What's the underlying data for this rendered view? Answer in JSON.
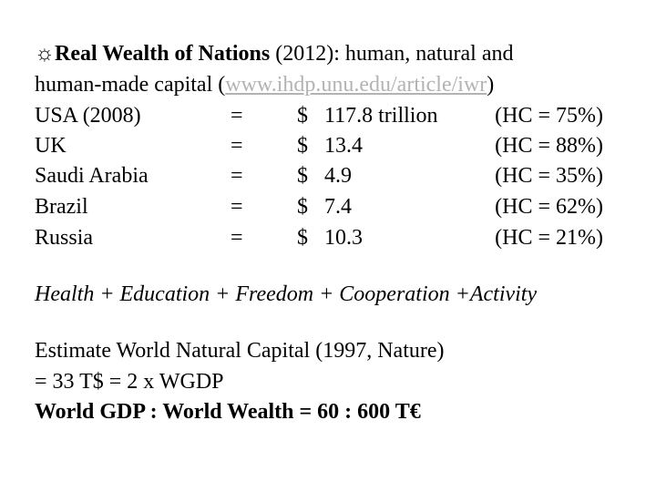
{
  "title": {
    "sun_symbol": "☼",
    "bold_part": "Real Wealth of Nations",
    "rest": " (2012): human, natural and",
    "line2_prefix": "human-made capital (",
    "link": "www.ihdp.unu.edu/article/iwr",
    "line2_suffix": ")"
  },
  "rows": [
    {
      "country": "USA (2008)",
      "eq": "=",
      "currency": "$",
      "value": "117.8 trillion",
      "hc": "(HC = 75%)"
    },
    {
      "country": "UK",
      "eq": "=",
      "currency": "$",
      "value": "13.4",
      "hc": "(HC = 88%)"
    },
    {
      "country": "Saudi Arabia",
      "eq": "=",
      "currency": "$",
      "value": "4.9",
      "hc": "(HC = 35%)"
    },
    {
      "country": "Brazil",
      "eq": "=",
      "currency": "$",
      "value": "7.4",
      "hc": "(HC = 62%)"
    },
    {
      "country": "Russia",
      "eq": "=",
      "currency": "$",
      "value": "10.3",
      "hc": "(HC = 21%)"
    }
  ],
  "formula": "Health + Education + Freedom + Cooperation +Activity",
  "estimate": {
    "line1": "Estimate World Natural Capital (1997, Nature)",
    "line2": "=  33 T$ = 2 x WGDP",
    "line3": "World GDP : World Wealth = 60 : 600 T€"
  }
}
